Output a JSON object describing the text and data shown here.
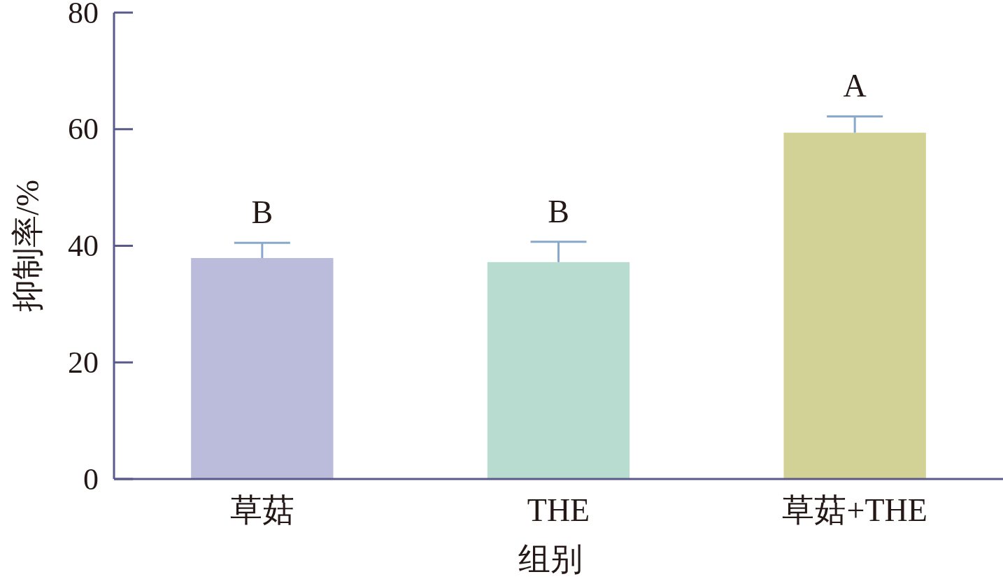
{
  "chart_data": {
    "type": "bar",
    "xlabel": "组别",
    "ylabel": "抑制率/%",
    "categories": [
      "草菇",
      "THE",
      "草菇+THE"
    ],
    "values": [
      37.9,
      37.2,
      59.4
    ],
    "errors": [
      2.6,
      3.5,
      2.8
    ],
    "colors": [
      "#bbbbdc",
      "#b8ddd0",
      "#d3d296"
    ],
    "ylim": [
      0,
      80
    ],
    "yticks": [
      0,
      20,
      40,
      60,
      80
    ],
    "annotations": [
      {
        "text": "B",
        "x": "草菇",
        "y": 40.5
      },
      {
        "text": "B",
        "x": "THE",
        "y": 40.7
      },
      {
        "text": "A",
        "x": "草菇+THE",
        "y": 62.2
      }
    ]
  }
}
